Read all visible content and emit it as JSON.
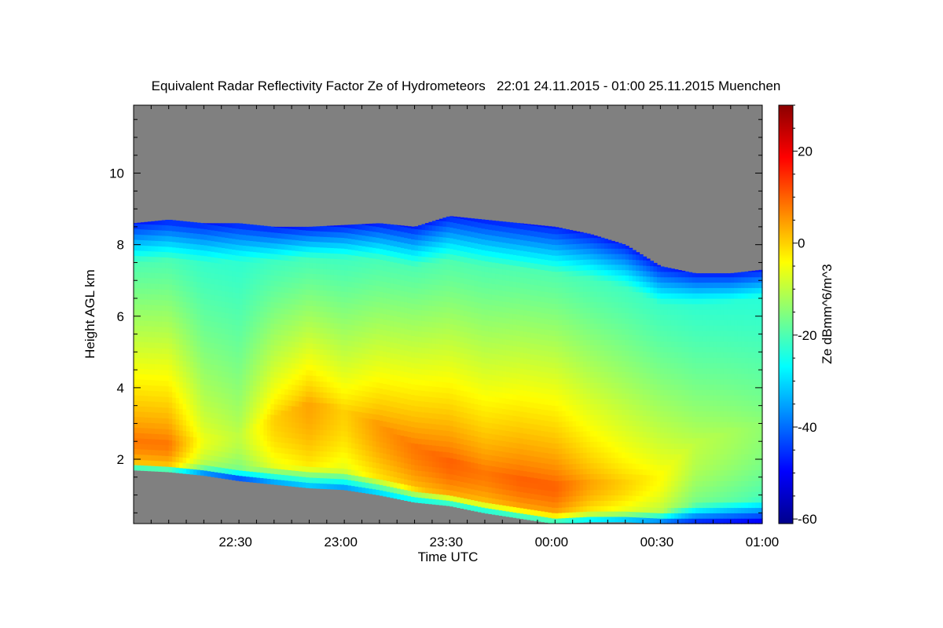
{
  "chart_data": {
    "type": "heatmap",
    "title": "Equivalent Radar Reflectivity Factor Ze of Hydrometeors   22:01 24.11.2015 - 01:00 25.11.2015 Muenchen",
    "xlabel": "Time UTC",
    "ylabel": "Height AGL km",
    "x_tick_labels": [
      "22:30",
      "23:00",
      "23:30",
      "00:00",
      "00:30",
      "01:00"
    ],
    "x_tick_values_min": [
      29,
      59,
      89,
      119,
      149,
      179
    ],
    "xlim_min": [
      0,
      179
    ],
    "x_start": "22:01",
    "x_end": "01:00",
    "y_tick_labels": [
      "2",
      "4",
      "6",
      "8",
      "10"
    ],
    "y_tick_values": [
      2,
      4,
      6,
      8,
      10
    ],
    "ylim": [
      0.2,
      11.9
    ],
    "colorbar": {
      "label": "Ze dBmm^6/m^3",
      "tick_labels": [
        "20",
        "0",
        "-20",
        "-40",
        "-60"
      ],
      "tick_values": [
        20,
        0,
        -20,
        -40,
        -60
      ],
      "range": [
        -61,
        30
      ],
      "colormap": [
        "#00008b",
        "#0000ff",
        "#0080ff",
        "#00ffff",
        "#80ff80",
        "#ffff00",
        "#ff8000",
        "#ff0000",
        "#8b0000"
      ]
    },
    "no_data_color": "#808080",
    "profile": {
      "time_min": [
        0,
        10,
        20,
        30,
        40,
        50,
        60,
        70,
        80,
        90,
        100,
        110,
        120,
        130,
        140,
        150,
        160,
        170,
        179
      ],
      "cloud_base_km": [
        1.7,
        1.65,
        1.55,
        1.4,
        1.3,
        1.2,
        1.15,
        1.0,
        0.8,
        0.7,
        0.5,
        0.35,
        0.2,
        0.25,
        0.25,
        0.2,
        0.2,
        0.2,
        0.2
      ],
      "cloud_top_km": [
        8.6,
        8.7,
        8.6,
        8.6,
        8.5,
        8.5,
        8.55,
        8.6,
        8.5,
        8.8,
        8.7,
        8.6,
        8.5,
        8.3,
        8.0,
        7.4,
        7.2,
        7.2,
        7.3
      ],
      "max_ze_dbz": [
        8,
        8,
        -6,
        -10,
        0,
        4,
        0,
        5,
        8,
        10,
        8,
        10,
        10,
        4,
        0,
        -4,
        -10,
        -12,
        -14
      ],
      "max_ze_height_km": [
        2.6,
        2.5,
        2.6,
        2.7,
        3.2,
        3.6,
        3.4,
        3.0,
        2.4,
        2.0,
        1.7,
        1.5,
        1.3,
        1.4,
        1.4,
        1.6,
        2.5,
        2.8,
        3.0
      ]
    }
  }
}
